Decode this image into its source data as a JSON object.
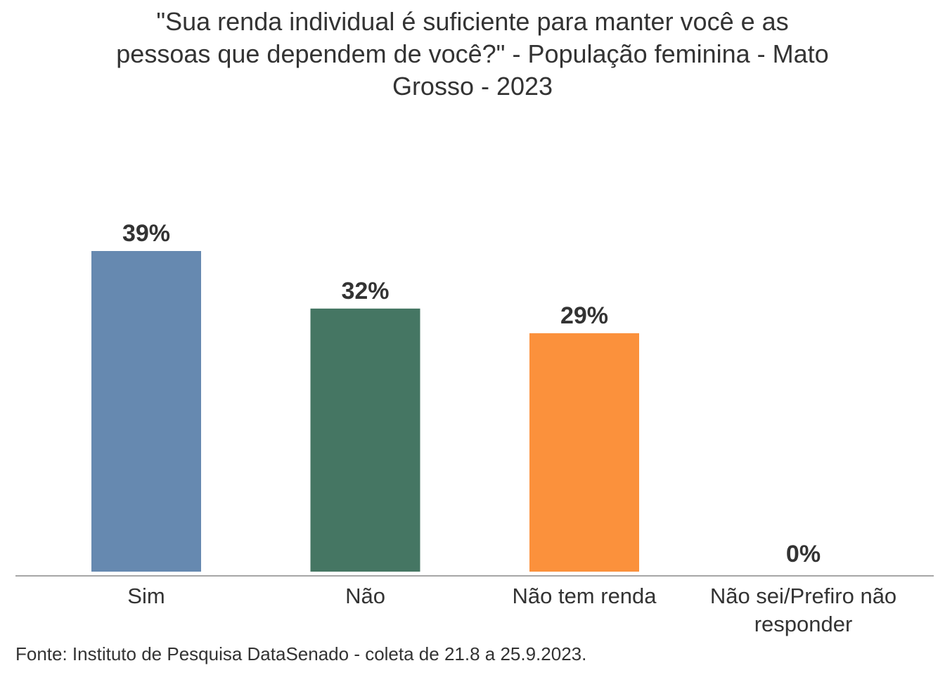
{
  "chart_data": {
    "type": "bar",
    "title_lines": [
      "\"Sua renda individual é suficiente para manter você e as",
      "pessoas que dependem de você?\" - População feminina - Mato",
      "Grosso - 2023"
    ],
    "categories": [
      "Sim",
      "Não",
      "Não tem renda",
      "Não sei/Prefiro não responder"
    ],
    "values": [
      39,
      32,
      29,
      0
    ],
    "value_labels": [
      "39%",
      "32%",
      "29%",
      "0%"
    ],
    "colors": [
      "#6689b0",
      "#457663",
      "#fb913c",
      "#999999"
    ],
    "xlabel": "",
    "ylabel": "",
    "ylim": [
      0,
      39
    ],
    "grid": false,
    "legend": "none",
    "source": "Fonte: Instituto de Pesquisa DataSenado - coleta de 21.8 a 25.9.2023."
  }
}
